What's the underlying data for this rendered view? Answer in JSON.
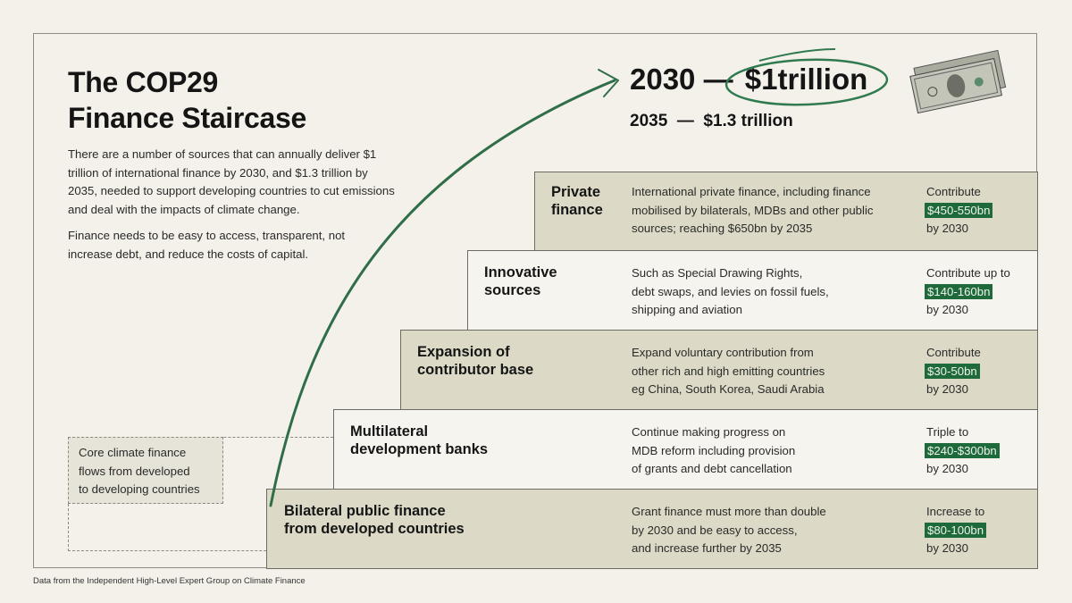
{
  "title_lines": [
    "The COP29",
    "Finance Staircase"
  ],
  "intro": [
    "There are a number of sources that can annually deliver $1 trillion of international finance by 2030, and $1.3 trillion by 2035, needed to support developing countries to cut emissions and deal with the impacts of climate change.",
    "Finance needs to be easy to access, transparent, not increase debt, and reduce the costs of capital."
  ],
  "targets": {
    "t2030_year": "2030 —",
    "t2030_amount": "$1trillion",
    "t2035": "2035  —  $1.3 trillion"
  },
  "core_note": [
    "Core climate finance",
    "flows from developed",
    "to developing countries"
  ],
  "steps": [
    {
      "title": [
        "Private",
        "finance"
      ],
      "desc": [
        "International private finance, including finance",
        "mobilised by bilaterals, MDBs and other public",
        "sources; reaching $650bn by 2035"
      ],
      "pre": "Contribute",
      "amount": "$450-550bn",
      "post": "by 2030"
    },
    {
      "title": [
        "Innovative",
        "sources"
      ],
      "desc": [
        "Such as Special Drawing Rights,",
        "debt swaps, and levies on fossil fuels,",
        "shipping and aviation"
      ],
      "pre": "Contribute up to",
      "amount": "$140-160bn",
      "post": "by 2030"
    },
    {
      "title": [
        "Expansion of",
        "contributor base"
      ],
      "desc": [
        "Expand voluntary contribution from",
        "other rich and high emitting countries",
        "eg China, South Korea, Saudi Arabia"
      ],
      "pre": "Contribute",
      "amount": "$30-50bn",
      "post": "by 2030"
    },
    {
      "title": [
        "Multilateral",
        "development banks"
      ],
      "desc": [
        "Continue making progress on",
        "MDB reform including provision",
        "of grants and debt cancellation"
      ],
      "pre": "Triple to",
      "amount": "$240-$300bn",
      "post": "by 2030"
    },
    {
      "title": [
        "Bilateral public finance",
        "from developed countries"
      ],
      "desc": [
        "Grant finance must more than double",
        "by 2030 and be easy to access,",
        "and increase further by 2035"
      ],
      "pre": "Increase to",
      "amount": "$80-100bn",
      "post": "by 2030"
    }
  ],
  "source": "Data from the Independent High-Level Expert Group on Climate Finance",
  "colors": {
    "accent_green": "#1f6a3a",
    "step_shaded": "#dcdac6",
    "step_light": "#f6f4ee",
    "background": "#f4f1ea"
  },
  "icons": [
    "dollar-bills-icon",
    "curved-arrow-icon",
    "circle-highlight-icon"
  ]
}
